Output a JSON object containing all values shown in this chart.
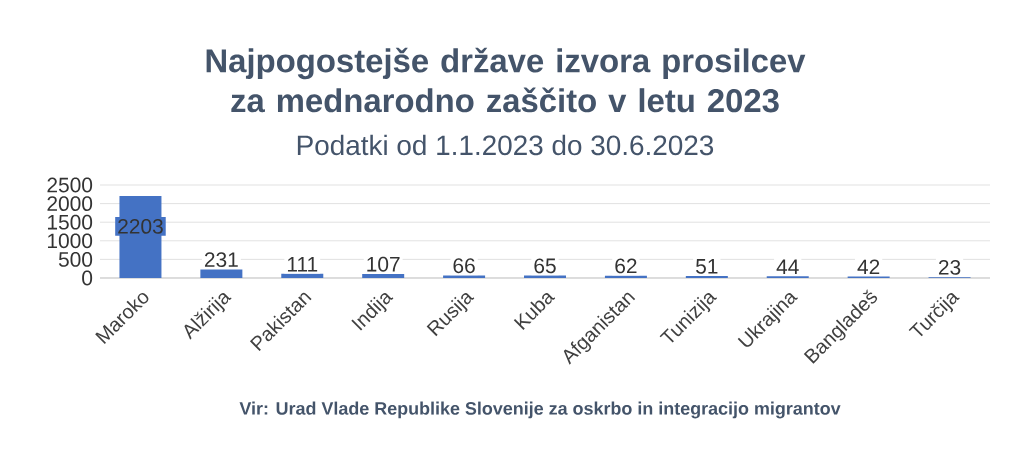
{
  "chart_data": {
    "type": "bar",
    "title": "Najpogostejše države izvora prosilcev za mednarodno zaščito v letu 2023",
    "subtitle": "Podatki od 1.1.2023 do 30.6.2023",
    "categories": [
      "Maroko",
      "Alžirija",
      "Pakistan",
      "Indija",
      "Rusija",
      "Kuba",
      "Afganistan",
      "Tunizija",
      "Ukrajina",
      "Bangladeš",
      "Turčija"
    ],
    "values": [
      2203,
      231,
      111,
      107,
      66,
      65,
      62,
      51,
      44,
      42,
      23
    ],
    "color": "#4472c4",
    "ylim": [
      0,
      2500
    ],
    "yticks": [
      0,
      500,
      1000,
      1500,
      2000,
      2500
    ],
    "grid": "y",
    "data_labels": true,
    "annotations": [
      "Vir: Urad Vlade Republike Slovenije za oskrbo in integracijo migrantov"
    ]
  }
}
